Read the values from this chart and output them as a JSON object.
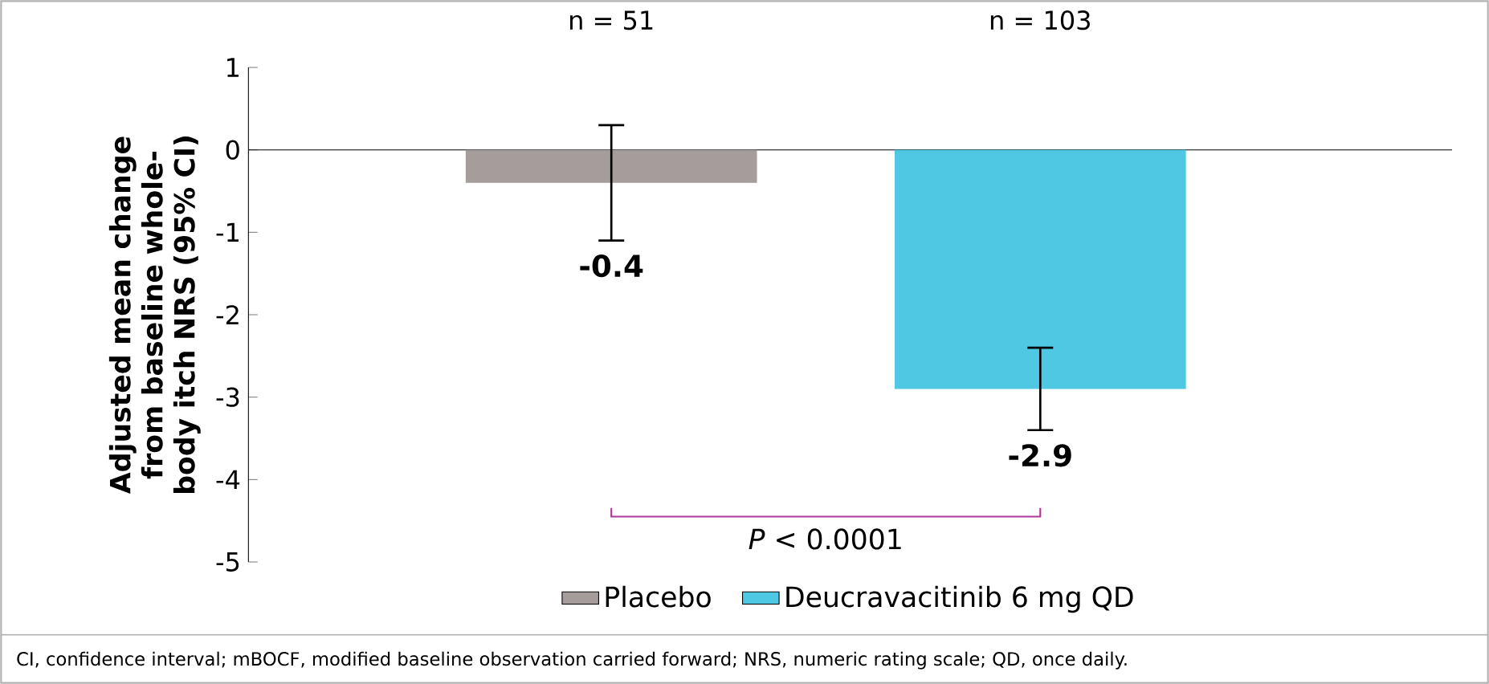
{
  "chart_data": {
    "type": "bar",
    "ylabel": "Adjusted mean change from baseline whole-body itch NRS (95% CI)",
    "categories": [
      null,
      null
    ],
    "series": [
      {
        "name": "Placebo",
        "color": "#a59c9c",
        "values": [
          -0.4,
          null
        ],
        "errors": [
          [
            -1.1,
            0.3
          ],
          null
        ]
      },
      {
        "name": "Deucravacitinib 6 mg QD",
        "color": "#4fc8e4",
        "values": [
          null,
          -2.9
        ],
        "errors": [
          null,
          [
            -3.4,
            -2.4
          ]
        ]
      }
    ],
    "ylim": [
      -5,
      1
    ],
    "yticks": [
      -5,
      -4,
      -3,
      -2,
      -1,
      0,
      1
    ],
    "data_labels": true,
    "legend": "bottom",
    "annotations": [
      "n = 51",
      "n = 103",
      "*P* < 0.0001",
      "CI, confidence interval; mBOCF, modified baseline observation carried forward; NRS, numeric rating scale; QD, once daily."
    ]
  }
}
